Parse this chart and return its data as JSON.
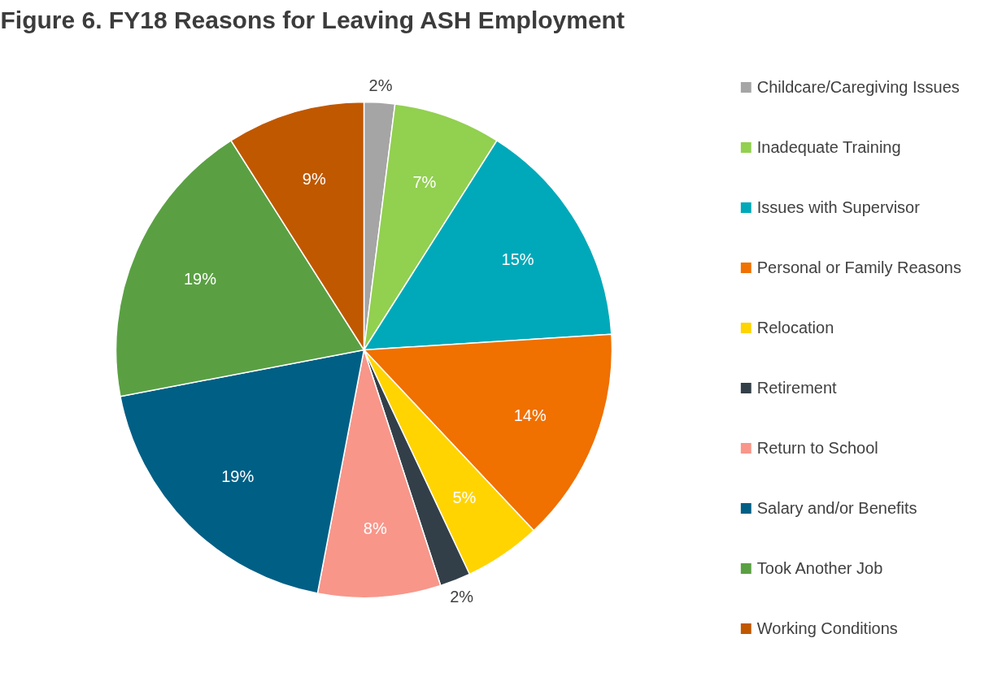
{
  "chart_data": {
    "type": "pie",
    "title": "Figure 6. FY18 Reasons for Leaving ASH Employment",
    "categories": [
      "Childcare/Caregiving Issues",
      "Inadequate Training",
      "Issues with Supervisor",
      "Personal or Family Reasons",
      "Relocation",
      "Retirement",
      "Return to School",
      "Salary and/or Benefits",
      "Took Another Job",
      "Working Conditions"
    ],
    "values": [
      2,
      7,
      15,
      14,
      5,
      2,
      8,
      19,
      19,
      9
    ],
    "colors": [
      "#a5a5a5",
      "#92d050",
      "#00a9b9",
      "#f07000",
      "#ffd400",
      "#333f48",
      "#f8968a",
      "#005f85",
      "#5aa043",
      "#c05800"
    ],
    "value_labels": [
      "2%",
      "7%",
      "15%",
      "14%",
      "5%",
      "2%",
      "8%",
      "19%",
      "19%",
      "9%"
    ],
    "data_labels": true,
    "legend": "right"
  }
}
